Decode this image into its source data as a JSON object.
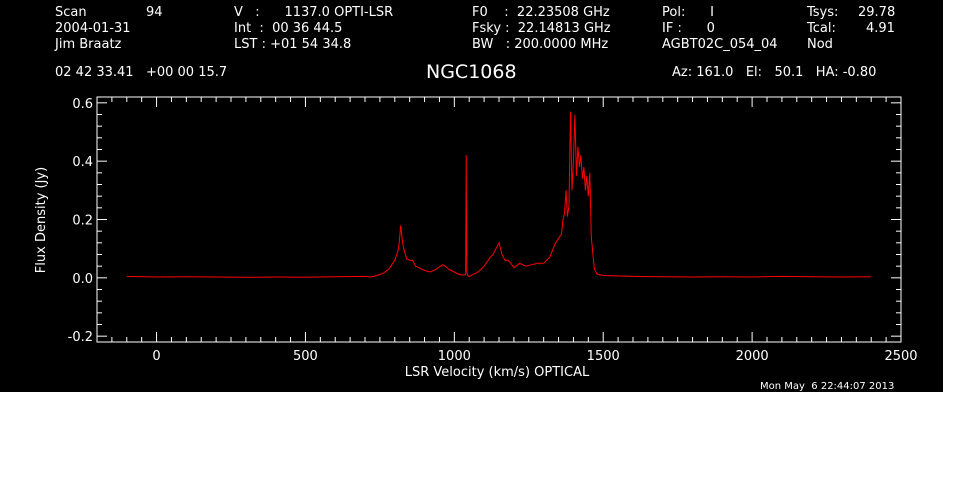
{
  "header": {
    "scan_label": "Scan",
    "scan_value": "94",
    "date": "2004-01-31",
    "observer": "Jim Braatz",
    "v_line": "V   :      1137.0 OPTI-LSR",
    "int_line": "Int  :  00 36 44.5",
    "lst_line": "LST : +01 54 34.8",
    "f0_line": "F0    :  22.23508 GHz",
    "fsky_line": "Fsky :  22.14813 GHz",
    "bw_line": "BW   : 200.0000 MHz",
    "pol_line": "Pol:      I",
    "if_line": "IF :      0",
    "project": "AGBT02C_054_04",
    "tsys_label": "Tsys:",
    "tsys_value": "29.78",
    "tcal_label": "Tcal:",
    "tcal_value": "4.91",
    "mode": "Nod",
    "coords": "02 42 33.41   +00 00 15.7",
    "source": "NGC1068",
    "az_el_ha": "Az: 161.0   El:   50.1   HA: -0.80"
  },
  "timestamp": "Mon May  6 22:44:07 2013",
  "colors": {
    "background": "#000000",
    "axes": "#ffffff",
    "series": "#ff0000"
  },
  "chart_data": {
    "type": "line",
    "xlabel": "LSR Velocity (km/s) OPTICAL",
    "ylabel": "Flux Density (Jy)",
    "xlim": [
      -200,
      2500
    ],
    "ylim": [
      -0.22,
      0.62
    ],
    "xticks": [
      0,
      500,
      1000,
      1500,
      2000,
      2500
    ],
    "xtick_labels": [
      "0",
      "500",
      "1000",
      "1500",
      "2000",
      "2500"
    ],
    "yticks": [
      -0.2,
      0.0,
      0.2,
      0.4,
      0.6
    ],
    "ytick_labels": [
      "-0.2",
      "0.0",
      "0.2",
      "0.4",
      "0.6"
    ],
    "grid": false,
    "series": [
      {
        "color": "#ff0000",
        "x": [
          -100,
          0,
          100,
          200,
          300,
          400,
          500,
          600,
          700,
          720,
          740,
          760,
          780,
          790,
          800,
          810,
          815,
          820,
          825,
          830,
          840,
          850,
          860,
          870,
          880,
          900,
          920,
          940,
          960,
          970,
          980,
          990,
          1000,
          1010,
          1020,
          1030,
          1038,
          1040,
          1042,
          1045,
          1050,
          1060,
          1080,
          1100,
          1120,
          1130,
          1140,
          1150,
          1160,
          1170,
          1180,
          1190,
          1200,
          1220,
          1240,
          1260,
          1280,
          1300,
          1320,
          1340,
          1360,
          1365,
          1370,
          1375,
          1380,
          1385,
          1390,
          1395,
          1400,
          1405,
          1410,
          1415,
          1420,
          1425,
          1430,
          1435,
          1440,
          1445,
          1450,
          1455,
          1460,
          1470,
          1480,
          1500,
          1600,
          1700,
          1800,
          1900,
          2000,
          2100,
          2200,
          2300,
          2400
        ],
        "y": [
          0.005,
          0.003,
          0.004,
          0.003,
          0.002,
          0.003,
          0.002,
          0.004,
          0.005,
          0.003,
          0.008,
          0.015,
          0.03,
          0.045,
          0.06,
          0.09,
          0.12,
          0.18,
          0.13,
          0.1,
          0.065,
          0.06,
          0.06,
          0.04,
          0.035,
          0.025,
          0.02,
          0.03,
          0.045,
          0.04,
          0.03,
          0.025,
          0.02,
          0.015,
          0.01,
          0.01,
          0.01,
          0.42,
          0.02,
          0.008,
          0.005,
          0.01,
          0.02,
          0.04,
          0.07,
          0.08,
          0.1,
          0.12,
          0.08,
          0.06,
          0.06,
          0.05,
          0.035,
          0.05,
          0.04,
          0.045,
          0.05,
          0.05,
          0.07,
          0.12,
          0.15,
          0.2,
          0.22,
          0.3,
          0.21,
          0.25,
          0.57,
          0.3,
          0.4,
          0.56,
          0.35,
          0.45,
          0.38,
          0.42,
          0.34,
          0.38,
          0.3,
          0.35,
          0.28,
          0.36,
          0.14,
          0.03,
          0.012,
          0.008,
          0.005,
          0.004,
          0.003,
          0.004,
          0.003,
          0.005,
          0.004,
          0.003,
          0.004
        ]
      }
    ]
  }
}
